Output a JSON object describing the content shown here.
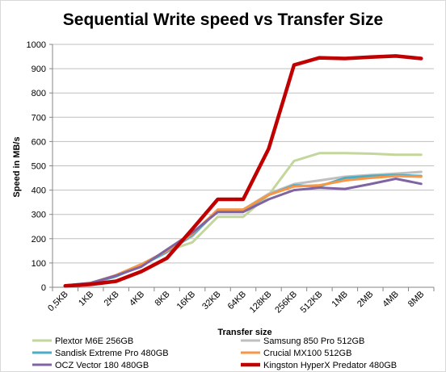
{
  "chart_data": {
    "type": "line",
    "title": "Sequential Write speed vs Transfer Size",
    "xlabel": "Transfer size",
    "ylabel": "Speed in MB/s",
    "ylim": [
      0,
      1000
    ],
    "yticks": [
      0,
      100,
      200,
      300,
      400,
      500,
      600,
      700,
      800,
      900,
      1000
    ],
    "grid": "horizontal",
    "legend_position": "bottom",
    "categories": [
      "0,5KB",
      "1KB",
      "2KB",
      "4KB",
      "8KB",
      "16KB",
      "32KB",
      "64KB",
      "128KB",
      "256KB",
      "512KB",
      "1MB",
      "2MB",
      "4MB",
      "8MB"
    ],
    "series": [
      {
        "name": "Plextor M6E 256GB",
        "color": "#c3d69b",
        "width": 3,
        "values": [
          8,
          15,
          45,
          90,
          150,
          185,
          290,
          290,
          380,
          520,
          552,
          552,
          550,
          546,
          546
        ]
      },
      {
        "name": "Samsung 850 Pro 512GB",
        "color": "#bfbfbf",
        "width": 3,
        "values": [
          8,
          18,
          48,
          95,
          150,
          210,
          320,
          320,
          385,
          425,
          440,
          455,
          462,
          468,
          475
        ]
      },
      {
        "name": "Sandisk Extreme Pro 480GB",
        "color": "#4bacc6",
        "width": 3,
        "values": [
          7,
          16,
          45,
          90,
          145,
          215,
          315,
          315,
          380,
          420,
          415,
          450,
          458,
          462,
          458
        ]
      },
      {
        "name": "Crucial MX100 512GB",
        "color": "#f79646",
        "width": 3,
        "values": [
          8,
          17,
          50,
          95,
          150,
          220,
          320,
          320,
          380,
          415,
          420,
          440,
          450,
          458,
          455
        ]
      },
      {
        "name": "OCZ Vector 180 480GB",
        "color": "#8064a2",
        "width": 3,
        "values": [
          7,
          18,
          48,
          85,
          155,
          225,
          310,
          310,
          362,
          400,
          410,
          405,
          425,
          447,
          426
        ]
      },
      {
        "name": "Kingston HyperX Predator 480GB",
        "color": "#c00000",
        "width": 4.5,
        "values": [
          6,
          12,
          25,
          65,
          120,
          240,
          362,
          362,
          570,
          915,
          945,
          942,
          948,
          952,
          942
        ]
      }
    ]
  }
}
